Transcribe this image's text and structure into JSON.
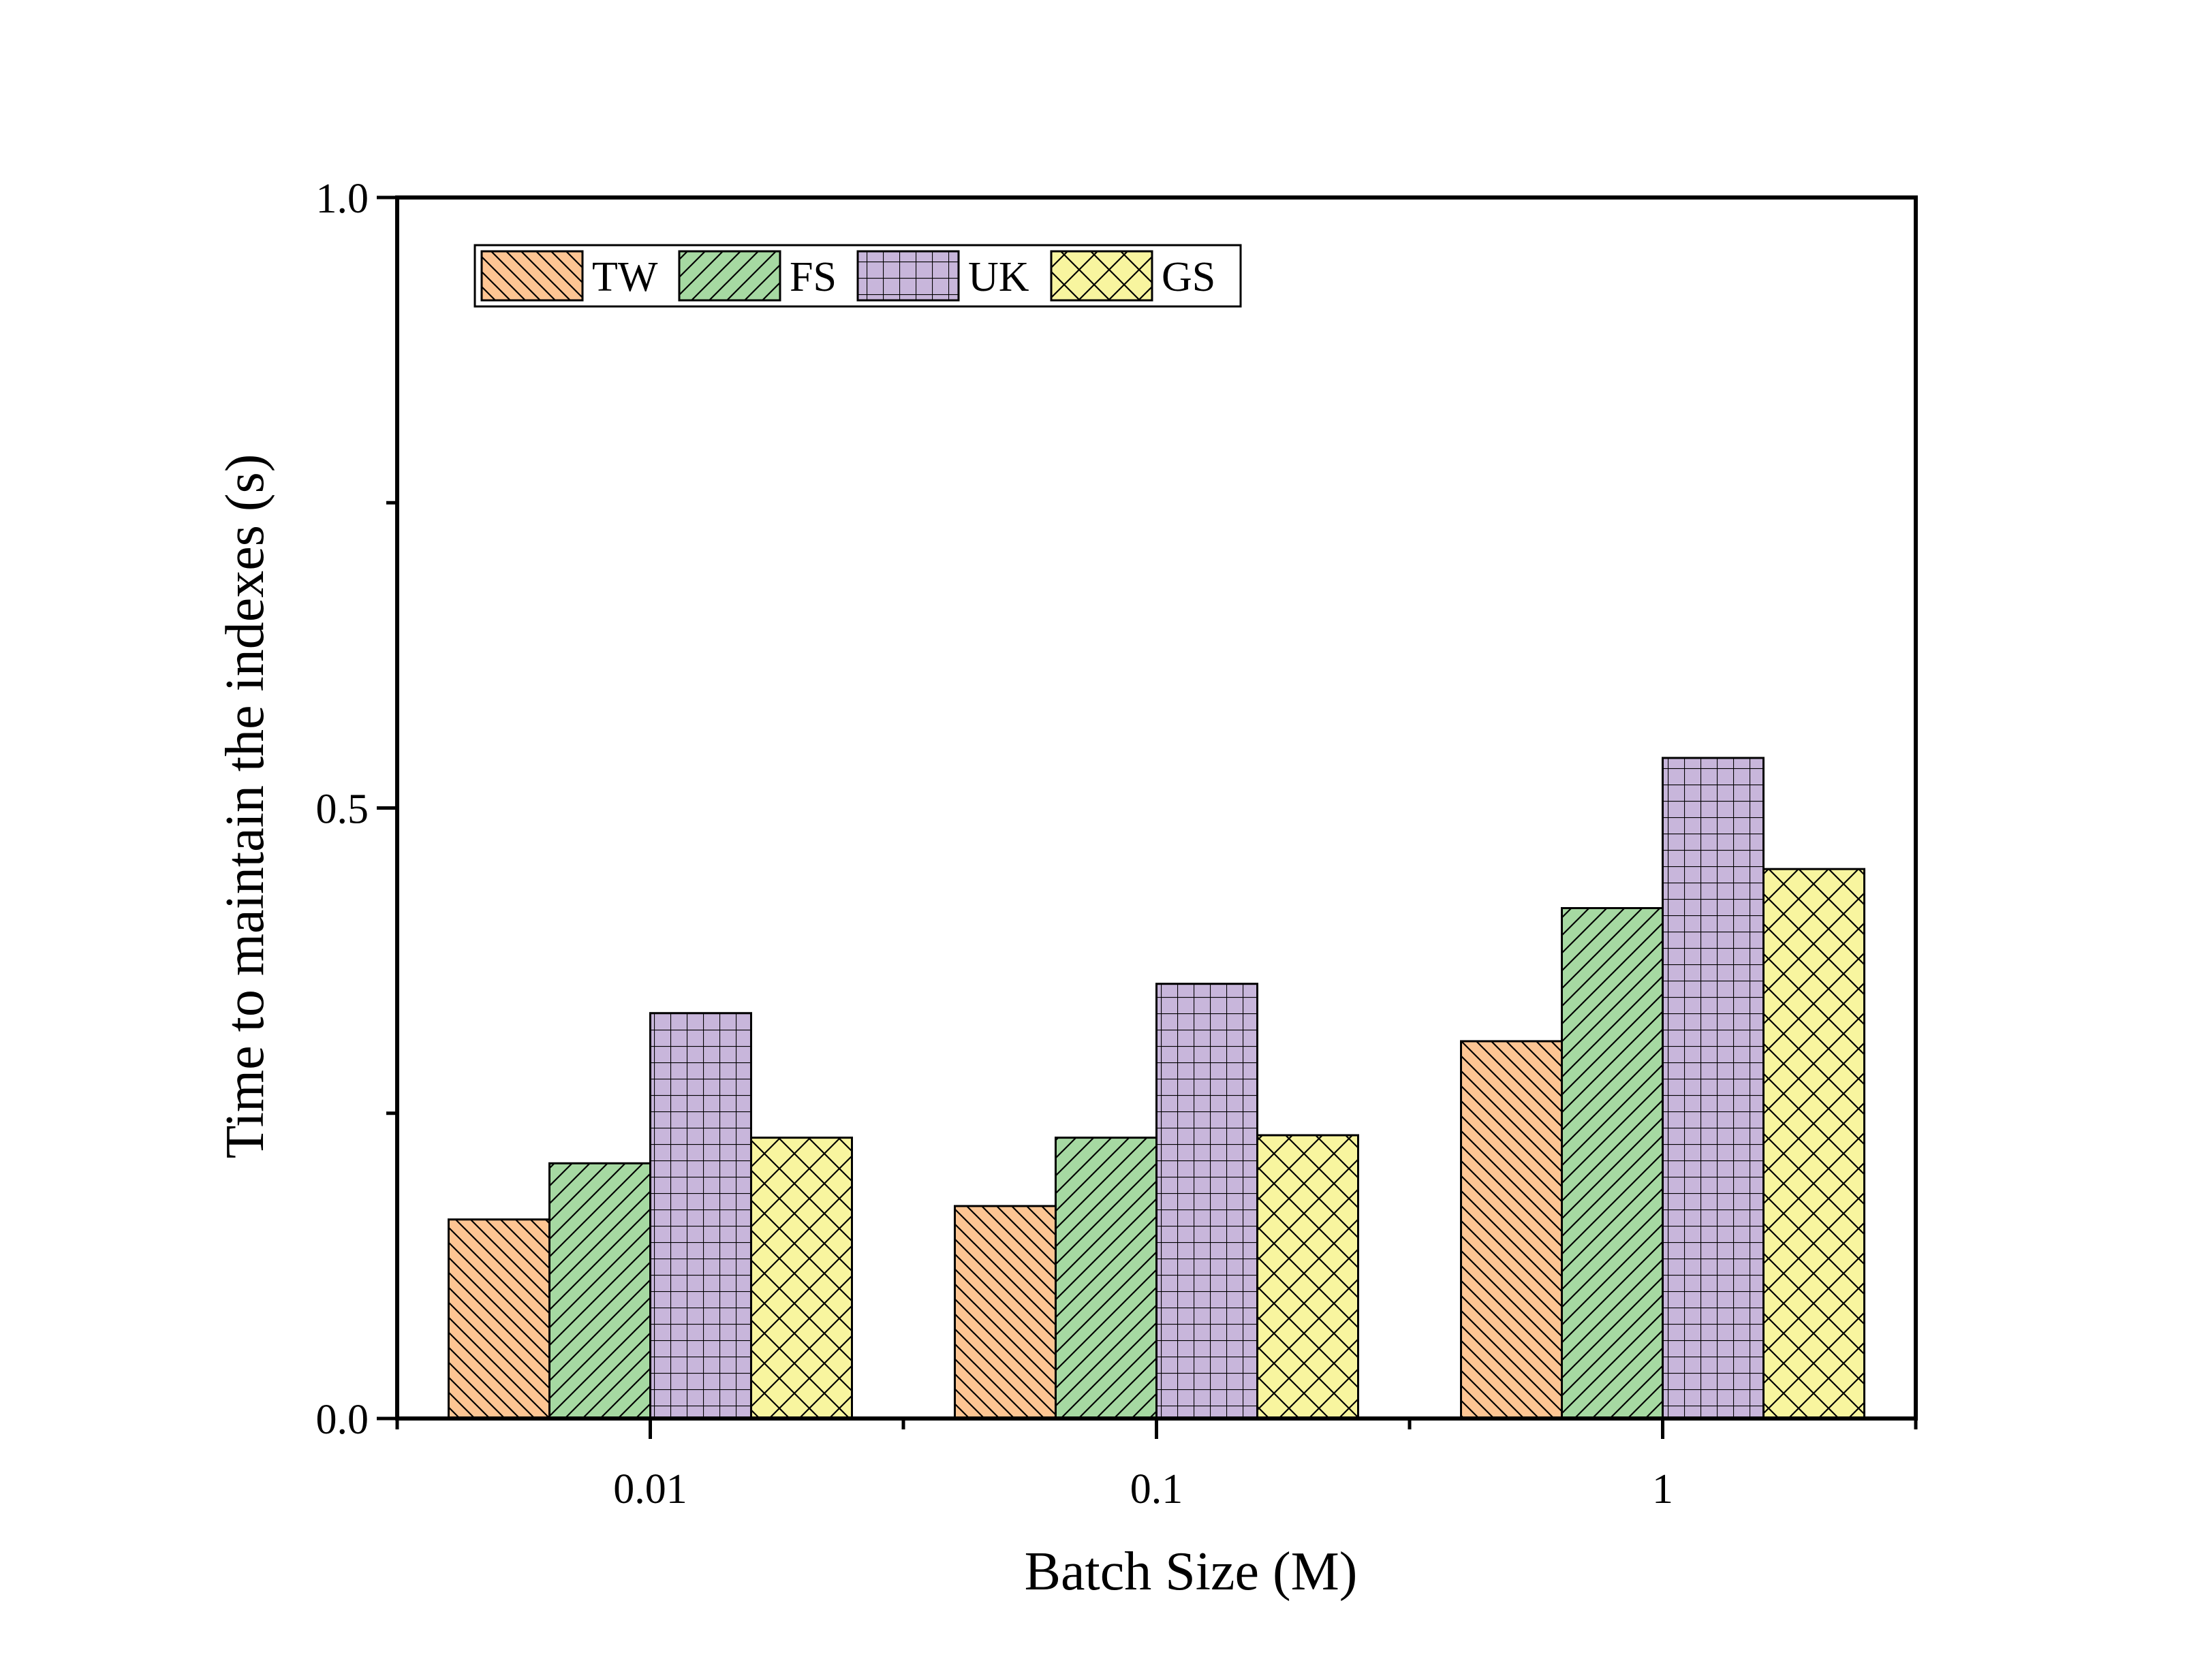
{
  "chart_data": {
    "type": "bar",
    "title": "",
    "xlabel": "Batch Size (M)",
    "ylabel": "Time to maintain the indexes (s)",
    "categories": [
      "0.01",
      "0.1",
      "1"
    ],
    "ylim": [
      0,
      1.0
    ],
    "yticks": [
      "0.0",
      "0.5",
      "1.0"
    ],
    "grid": false,
    "legend_position": "top-left",
    "series": [
      {
        "name": "TW",
        "color": "#FDC593",
        "pattern": "diagonal-back",
        "values": [
          0.163,
          0.174,
          0.309
        ]
      },
      {
        "name": "FS",
        "color": "#A6D9A2",
        "pattern": "diagonal-forward",
        "values": [
          0.209,
          0.23,
          0.418
        ]
      },
      {
        "name": "UK",
        "color": "#C8B6DB",
        "pattern": "grid",
        "values": [
          0.332,
          0.356,
          0.541
        ]
      },
      {
        "name": "GS",
        "color": "#F8F59F",
        "pattern": "crosshatch",
        "values": [
          0.23,
          0.232,
          0.45
        ]
      }
    ]
  }
}
